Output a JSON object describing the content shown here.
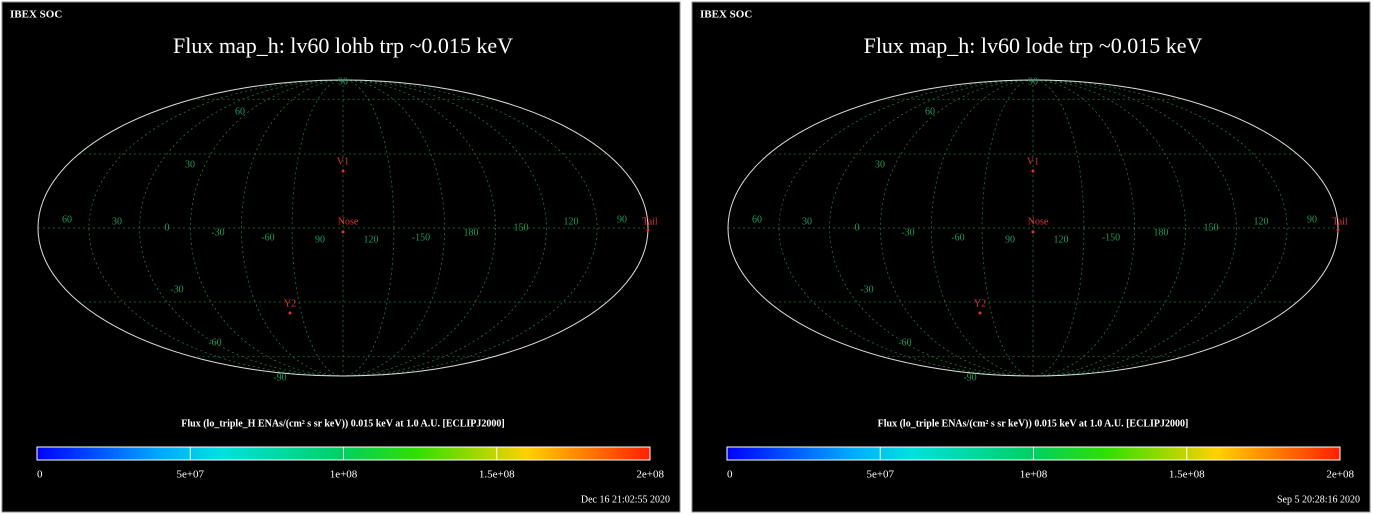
{
  "panels": [
    {
      "header": "IBEX SOC",
      "title": "Flux   map_h: lv60 lohb trp ~0.015 keV",
      "grid_labels": [
        "90",
        "60",
        "30",
        "60",
        "30",
        "0",
        "-30",
        "-60",
        "90",
        "120",
        "-150",
        "180",
        "150",
        "120",
        "90",
        "-30",
        "-60",
        "-90"
      ],
      "markers": [
        "V1",
        "Nose",
        "Y2",
        "Tail"
      ],
      "colorbar_label": "Flux (lo_triple_H ENAs/(cm² s sr keV))  0.015 keV at 1.0 A.U. [ECLIPJ2000]",
      "colorbar": {
        "range": [
          0,
          200000000
        ],
        "ticks": [
          0,
          {
            "value": 50000000,
            "label": "5e+07"
          },
          {
            "value": 100000000,
            "label": "1e+08"
          },
          {
            "value": 150000000,
            "label": "1.5e+08"
          },
          {
            "value": 200000000,
            "label": "2e+08"
          }
        ]
      },
      "timestamp": "Dec 16 21:02:55 2020"
    },
    {
      "header": "IBEX SOC",
      "title": "Flux   map_h: lv60 lode trp ~0.015 keV",
      "grid_labels": [
        "90",
        "60",
        "30",
        "60",
        "30",
        "0",
        "-30",
        "-60",
        "90",
        "120",
        "-150",
        "180",
        "150",
        "120",
        "90",
        "-30",
        "-60",
        "-90"
      ],
      "markers": [
        "V1",
        "Nose",
        "Y2",
        "Tail"
      ],
      "colorbar_label": "Flux (lo_triple ENAs/(cm² s sr keV))  0.015 keV at 1.0 A.U. [ECLIPJ2000]",
      "colorbar": {
        "range": [
          0,
          200000000
        ],
        "ticks": [
          0,
          {
            "value": 50000000,
            "label": "5e+07"
          },
          {
            "value": 100000000,
            "label": "1e+08"
          },
          {
            "value": 150000000,
            "label": "1.5e+08"
          },
          {
            "value": 200000000,
            "label": "2e+08"
          }
        ]
      },
      "timestamp": "Sep  5 20:28:16 2020"
    }
  ]
}
